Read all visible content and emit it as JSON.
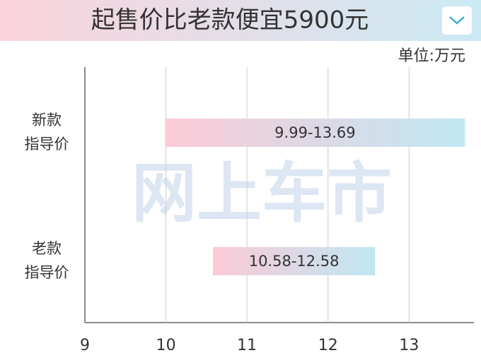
{
  "chart_data": {
    "type": "range-bar",
    "title": "起售价比老款便宜5900元",
    "unit": "单位:万元",
    "watermark": "网上车市",
    "categories": [
      [
        "新款",
        "指导价"
      ],
      [
        "老款",
        "指导价"
      ]
    ],
    "values": [
      [
        9.99,
        13.69
      ],
      [
        10.58,
        12.58
      ]
    ],
    "value_labels": [
      "9.99-13.69",
      "10.58-12.58"
    ],
    "colors": [
      "#fbcad6",
      "#bfe7f3"
    ],
    "xlim": [
      9,
      13.8
    ],
    "xticks": [
      9,
      10,
      11,
      12,
      13
    ],
    "grid": true
  }
}
